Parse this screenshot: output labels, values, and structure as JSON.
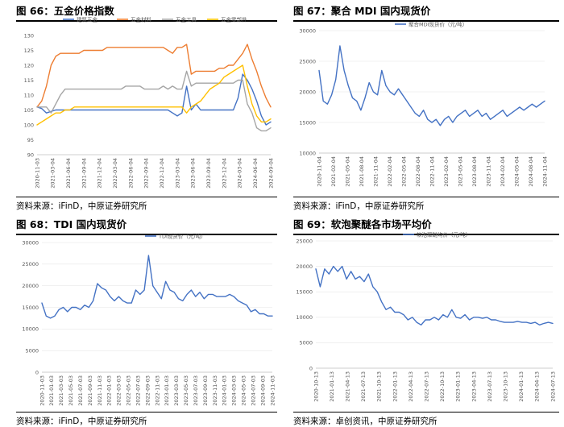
{
  "panels": [
    {
      "title": "图 66：五金价格指数",
      "source": "资料来源：iFinD，中原证券研究所"
    },
    {
      "title": "图 67：聚合 MDI 国内现货价",
      "source": "资料来源：iFinD，中原证券研究所"
    },
    {
      "title": "图 68：TDI 国内现货价",
      "source": "资料来源：iFinD，中原证券研究所"
    },
    {
      "title": "图 69：软泡聚醚各市场平均价",
      "source": "资料来源：卓创资讯，中原证券研究所"
    }
  ],
  "chart_data": [
    {
      "type": "line",
      "ylim": [
        90,
        130
      ],
      "yticks": [
        90,
        95,
        100,
        105,
        110,
        115,
        120,
        125,
        130
      ],
      "xticks": [
        "2020-11-03",
        "2021-03-04",
        "2021-06-04",
        "2021-09-04",
        "2021-12-04",
        "2022-03-04",
        "2022-06-04",
        "2022-09-04",
        "2022-12-04",
        "2023-03-04",
        "2023-06-04",
        "2023-09-04",
        "2023-12-04",
        "2024-03-04",
        "2024-06-04",
        "2024-09-04"
      ],
      "legend_position": "top",
      "series": [
        {
          "name": "建筑五金",
          "color": "#4472C4",
          "values": [
            106,
            105.5,
            104,
            104.5,
            105,
            105,
            105,
            105,
            105,
            105,
            105,
            105,
            105,
            105,
            105,
            105,
            105,
            105,
            105,
            105,
            105,
            105,
            105,
            105,
            105,
            105,
            105,
            105,
            105,
            104,
            103,
            104,
            113,
            105,
            107,
            105,
            105,
            105,
            105,
            105,
            105,
            105,
            105,
            109,
            117,
            115,
            112,
            108,
            103,
            100,
            101
          ]
        },
        {
          "name": "五金材料",
          "color": "#ED7D31",
          "values": [
            106,
            108,
            113,
            120,
            123,
            124,
            124,
            124,
            124,
            124,
            125,
            125,
            125,
            125,
            125,
            126,
            126,
            126,
            126,
            126,
            126,
            126,
            126,
            126,
            126,
            126,
            126,
            126,
            125,
            124,
            126,
            126,
            127,
            117,
            118,
            118,
            118,
            118,
            118,
            119,
            119,
            120,
            120,
            122,
            124,
            127,
            122,
            118,
            113,
            109,
            106
          ]
        },
        {
          "name": "五金工具",
          "color": "#A5A5A5",
          "values": [
            106,
            106,
            106,
            104,
            107,
            110,
            112,
            112,
            112,
            112,
            112,
            112,
            112,
            112,
            112,
            112,
            112,
            112,
            112,
            113,
            113,
            113,
            113,
            112,
            112,
            112,
            112,
            113,
            112,
            113,
            112,
            112,
            118,
            113,
            114,
            114,
            114,
            114,
            114,
            114,
            114,
            114,
            114,
            115,
            115,
            107,
            104,
            99,
            98,
            98,
            99
          ]
        },
        {
          "name": "五金零部件",
          "color": "#FFC000",
          "values": [
            100,
            101,
            102,
            103,
            104,
            104,
            105,
            105,
            106,
            106,
            106,
            106,
            106,
            106,
            106,
            106,
            106,
            106,
            106,
            106,
            106,
            106,
            106,
            106,
            106,
            106,
            106,
            106,
            106,
            106,
            106,
            106,
            104,
            106,
            107,
            108,
            110,
            112,
            113,
            114,
            116,
            117,
            118,
            119,
            120,
            113,
            107,
            103,
            101,
            101,
            102
          ]
        }
      ]
    },
    {
      "type": "line",
      "ylim": [
        10000,
        30000
      ],
      "yticks": [
        10000,
        15000,
        20000,
        25000,
        30000
      ],
      "xticks": [
        "2020-11-04",
        "2021-02-04",
        "2021-05-04",
        "2021-08-04",
        "2021-11-04",
        "2022-02-04",
        "2022-05-04",
        "2022-08-04",
        "2022-11-04",
        "2023-02-04",
        "2023-05-04",
        "2023-08-04",
        "2023-11-04",
        "2024-02-04",
        "2024-05-04",
        "2024-08-04",
        "2024-11-04"
      ],
      "legend_position": "top",
      "series": [
        {
          "name": "聚合MDI现货价（元/吨）",
          "color": "#4472C4",
          "values": [
            23500,
            18500,
            18000,
            19500,
            22000,
            27500,
            23500,
            21000,
            19000,
            18500,
            17000,
            19000,
            21500,
            20000,
            19500,
            23500,
            21000,
            20000,
            19500,
            20500,
            19500,
            18500,
            17500,
            16500,
            16000,
            17000,
            15500,
            15000,
            15500,
            14500,
            15500,
            16000,
            15000,
            16000,
            16500,
            17000,
            16000,
            16500,
            17000,
            16000,
            16500,
            15500,
            16000,
            16500,
            17000,
            16000,
            16500,
            17000,
            17500,
            17000,
            17500,
            18000,
            17500,
            18000,
            18500
          ]
        }
      ]
    },
    {
      "type": "line",
      "ylim": [
        0,
        30000
      ],
      "yticks": [
        0,
        5000,
        10000,
        15000,
        20000,
        25000,
        30000
      ],
      "xticks": [
        "2020-11-03",
        "2021-01-03",
        "2021-03-03",
        "2021-05-03",
        "2021-07-03",
        "2021-09-03",
        "2021-11-03",
        "2022-01-03",
        "2022-03-03",
        "2022-05-03",
        "2022-07-03",
        "2022-09-03",
        "2022-11-03",
        "2023-01-03",
        "2023-03-03",
        "2023-05-03",
        "2023-07-03",
        "2023-09-03",
        "2023-11-03",
        "2024-01-03",
        "2024-03-03",
        "2024-05-03",
        "2024-07-03",
        "2024-09-03",
        "2024-11-03"
      ],
      "legend_position": "top",
      "series": [
        {
          "name": "TDI现货价（元/吨）",
          "color": "#4472C4",
          "values": [
            16000,
            13000,
            12500,
            13000,
            14500,
            15000,
            14000,
            15000,
            15000,
            14500,
            15500,
            15000,
            16500,
            20500,
            19500,
            19000,
            17500,
            16500,
            17500,
            16500,
            16000,
            16000,
            19000,
            18000,
            19000,
            27000,
            20000,
            18500,
            17000,
            21000,
            19000,
            18500,
            17000,
            16500,
            18000,
            19000,
            17500,
            18500,
            17000,
            18000,
            18000,
            17500,
            17500,
            17500,
            18000,
            17500,
            16500,
            16000,
            15500,
            14000,
            14500,
            13500,
            13500,
            13000,
            13000
          ]
        }
      ]
    },
    {
      "type": "line",
      "ylim": [
        0,
        25000
      ],
      "yticks": [
        0,
        5000,
        10000,
        15000,
        20000,
        25000
      ],
      "xticks": [
        "2020-10-13",
        "2021-01-13",
        "2021-04-13",
        "2021-07-13",
        "2021-10-13",
        "2022-01-13",
        "2022-04-13",
        "2022-07-13",
        "2022-10-13",
        "2023-01-13",
        "2023-04-13",
        "2023-07-13",
        "2023-10-13",
        "2024-01-13",
        "2024-04-13",
        "2024-07-13"
      ],
      "legend_position": "top",
      "series": [
        {
          "name": "软泡聚醚均价（元/吨）",
          "color": "#4472C4",
          "values": [
            19500,
            16000,
            19500,
            18500,
            20000,
            19000,
            20000,
            17500,
            19000,
            17500,
            18000,
            17000,
            18500,
            16000,
            15000,
            13000,
            11500,
            12000,
            11000,
            11000,
            10500,
            9500,
            10000,
            9000,
            8500,
            9500,
            9500,
            10000,
            9500,
            10500,
            10000,
            11500,
            10000,
            9800,
            10500,
            9500,
            10000,
            10000,
            9800,
            10000,
            9500,
            9500,
            9200,
            9000,
            9000,
            9000,
            9200,
            9000,
            9000,
            8800,
            9000,
            8500,
            8800,
            9000,
            8800
          ]
        }
      ]
    }
  ]
}
